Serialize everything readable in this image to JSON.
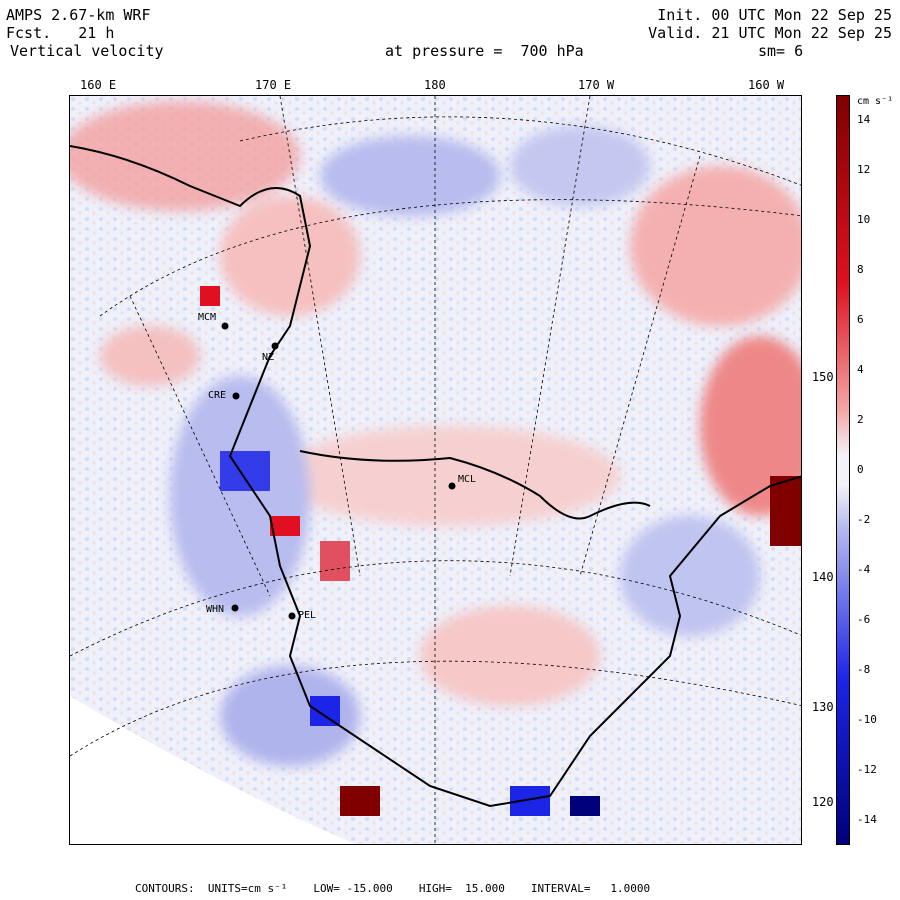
{
  "header": {
    "model": "AMPS 2.67-km WRF",
    "forecast": "Fcst.   21 h",
    "field": "Vertical velocity",
    "init": "Init. 00 UTC Mon 22 Sep 25",
    "valid": "Valid. 21 UTC Mon 22 Sep 25",
    "pressure": "at pressure =  700 hPa",
    "smoothing": "sm= 6"
  },
  "longitude_labels": [
    "160 E",
    "170 E",
    "180",
    "170 W",
    "160 W"
  ],
  "latitude_labels": [
    "150 W",
    "140 W",
    "130 W",
    "120 W"
  ],
  "stations": [
    "MCM",
    "WHN",
    "PEL",
    "CRE",
    "MCL",
    "NZ"
  ],
  "colorbar": {
    "unit": "cm s⁻¹",
    "ticks": [
      "14",
      "12",
      "10",
      "8",
      "6",
      "4",
      "2",
      "0",
      "-2",
      "-4",
      "-6",
      "-8",
      "-10",
      "-12",
      "-14"
    ],
    "colors": {
      "top": "#800000",
      "red": "#e01020",
      "pink": "#f4a6a6",
      "light": "#f2f2f8",
      "lightblue": "#b4b8ee",
      "blue": "#1c24e8",
      "bottom": "#00007a"
    }
  },
  "footer": {
    "contours": "CONTOURS:  UNITS=cm s⁻¹",
    "low": "LOW= -15.000",
    "high": "HIGH=  15.000",
    "interval": "INTERVAL=   1.0000"
  }
}
